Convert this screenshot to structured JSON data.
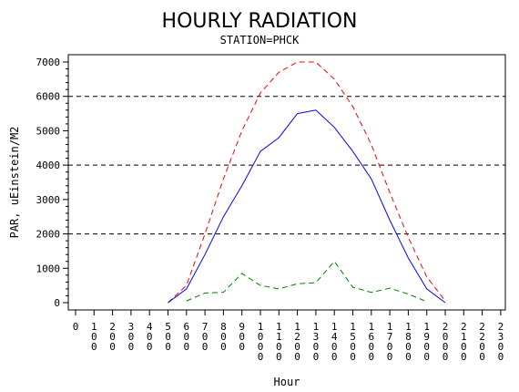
{
  "chart_data": {
    "type": "line",
    "title": "HOURLY RADIATION",
    "subtitle": "STATION=PHCK",
    "xlabel": "Hour",
    "ylabel": "PAR, uEinstein/M2",
    "xlim": [
      0,
      2300
    ],
    "ylim": [
      0,
      7000
    ],
    "x_ticks": [
      "0",
      "100",
      "200",
      "300",
      "400",
      "500",
      "600",
      "700",
      "800",
      "900",
      "1000",
      "1100",
      "1200",
      "1300",
      "1400",
      "1500",
      "1600",
      "1700",
      "1800",
      "1900",
      "2000",
      "2100",
      "2200",
      "2300"
    ],
    "y_ticks": [
      "0",
      "1000",
      "2000",
      "3000",
      "4000",
      "5000",
      "6000",
      "7000"
    ],
    "reference_lines": [
      2000,
      4000,
      6000
    ],
    "series": [
      {
        "color": "#ff0000",
        "dash": "dashed",
        "x": [
          500,
          600,
          700,
          800,
          900,
          1000,
          1100,
          1200,
          1300,
          1400,
          1500,
          1600,
          1700,
          1800,
          1900,
          2000
        ],
        "values": [
          0,
          500,
          2000,
          3600,
          5000,
          6100,
          6700,
          7000,
          7000,
          6500,
          5700,
          4600,
          3200,
          1900,
          750,
          50
        ]
      },
      {
        "color": "#0000ff",
        "dash": "solid",
        "x": [
          500,
          600,
          700,
          800,
          900,
          1000,
          1100,
          1200,
          1300,
          1400,
          1500,
          1600,
          1700,
          1800,
          1900,
          2000
        ],
        "values": [
          0,
          400,
          1400,
          2500,
          3400,
          4400,
          4800,
          5500,
          5600,
          5100,
          4400,
          3600,
          2400,
          1300,
          400,
          0
        ]
      },
      {
        "color": "#008000",
        "dash": "dashed",
        "x": [
          600,
          700,
          800,
          900,
          1000,
          1100,
          1200,
          1300,
          1400,
          1500,
          1600,
          1700,
          1800,
          1900
        ],
        "values": [
          50,
          280,
          300,
          850,
          500,
          400,
          550,
          580,
          1200,
          450,
          300,
          420,
          250,
          30
        ]
      }
    ]
  }
}
